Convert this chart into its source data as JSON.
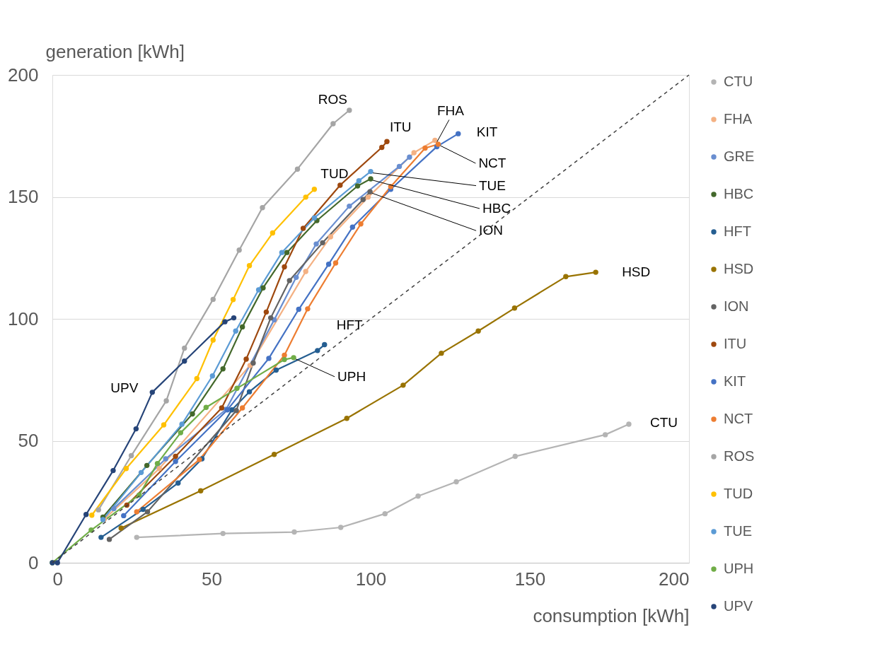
{
  "chart_data": {
    "type": "line",
    "xlabel": "consumption [kWh]",
    "ylabel": "generation [kWh]",
    "xlim": [
      0,
      200
    ],
    "ylim": [
      0,
      200
    ],
    "xticks": [
      0,
      50,
      100,
      150,
      200
    ],
    "yticks": [
      0,
      50,
      100,
      150,
      200
    ],
    "grid": "y",
    "legend": "right",
    "marker": "circle",
    "line_style": "solid",
    "series": [
      {
        "name": "CTU",
        "color": "#b4b4b4",
        "x": [
          26.5,
          53.6,
          76,
          90.6,
          104.5,
          114.9,
          126.9,
          145.4,
          173.7,
          181.1
        ],
        "values": [
          10.4,
          12,
          12.6,
          14.5,
          20.1,
          27.3,
          33.2,
          43.6,
          52.5,
          56.8
        ]
      },
      {
        "name": "FHA",
        "color": "#f4b183",
        "x": [
          16.3,
          33.6,
          62.1,
          79.6,
          87.4,
          99.2,
          113.6,
          120.2
        ],
        "values": [
          17.9,
          38.6,
          80.9,
          119.4,
          133.6,
          149.9,
          168.1,
          173.2
        ]
      },
      {
        "name": "GRE",
        "color": "#698ed0",
        "x": [
          19.3,
          35.6,
          54.6,
          69.7,
          76.6,
          82.9,
          93.3,
          109,
          112.2
        ],
        "values": [
          22.2,
          42.6,
          62.9,
          99.6,
          117,
          130.7,
          146.2,
          162.5,
          166.3
        ]
      },
      {
        "name": "HBC",
        "color": "#43682b",
        "x": [
          15.9,
          29.7,
          44,
          53.6,
          59.7,
          66.2,
          73.7,
          83.1,
          95.9,
          100
        ],
        "values": [
          18.7,
          39.9,
          61,
          79.5,
          96.7,
          112.7,
          127.2,
          140.3,
          154.5,
          157.4
        ]
      },
      {
        "name": "HFT",
        "color": "#255e91",
        "x": [
          15.3,
          28.5,
          39.5,
          47,
          56.4,
          61.9,
          70.3,
          83.3,
          85.5
        ],
        "values": [
          10.4,
          21.9,
          32.7,
          42.6,
          62.7,
          70.1,
          79,
          87,
          89.4
        ]
      },
      {
        "name": "HSD",
        "color": "#997300",
        "x": [
          21.6,
          46.6,
          69.7,
          92.5,
          110.2,
          122.2,
          133.8,
          145.2,
          161.3,
          170.7
        ],
        "values": [
          14.2,
          29.5,
          44.4,
          59.2,
          72.8,
          85.9,
          95,
          104.4,
          117.3,
          119.1
        ]
      },
      {
        "name": "ION",
        "color": "#636363",
        "x": [
          17.9,
          29.9,
          57.8,
          63.1,
          68.6,
          74.5,
          84.9,
          97.6,
          99.8
        ],
        "values": [
          9.6,
          20.9,
          62.4,
          81.9,
          100.4,
          115.7,
          131.2,
          148.9,
          152.1
        ]
      },
      {
        "name": "ITU",
        "color": "#9e480e",
        "x": [
          23.4,
          38.7,
          53.2,
          60.9,
          67.2,
          72.9,
          78.8,
          90.4,
          103.5,
          105.1
        ],
        "values": [
          23.6,
          43.6,
          63.5,
          83.5,
          102.8,
          121.3,
          137.1,
          154.8,
          170.3,
          172.7
        ]
      },
      {
        "name": "KIT",
        "color": "#4472c4",
        "x": [
          22.4,
          38.7,
          55,
          68,
          77.4,
          86.8,
          94.3,
          106.3,
          120.8,
          127.5
        ],
        "values": [
          19.3,
          41.5,
          62.7,
          83.8,
          103.9,
          122.4,
          137.6,
          153.1,
          170.6,
          175.9
        ]
      },
      {
        "name": "NCT",
        "color": "#ed7d31",
        "x": [
          26.5,
          46.2,
          59.7,
          72.9,
          80.2,
          89,
          96.9,
          106.3,
          117.1,
          121.2
        ],
        "values": [
          20.9,
          42.3,
          63.5,
          85.1,
          104.1,
          122.9,
          138.9,
          154.2,
          170,
          171.6
        ]
      },
      {
        "name": "ROS",
        "color": "#a5a5a5",
        "x": [
          14.5,
          24.8,
          35.8,
          41.5,
          50.5,
          58.7,
          66,
          77,
          88.2,
          93.3
        ],
        "values": [
          21.7,
          43.9,
          66.4,
          88,
          108,
          128.2,
          145.6,
          161.4,
          180,
          185.5
        ]
      },
      {
        "name": "TUD",
        "color": "#ffc000",
        "x": [
          12.4,
          23.2,
          35,
          45.4,
          50.5,
          56.8,
          61.9,
          69.2,
          79.6,
          82.3
        ],
        "values": [
          19.5,
          38.6,
          56.5,
          75.5,
          91.3,
          107.9,
          121.8,
          135.2,
          149.9,
          153.1
        ]
      },
      {
        "name": "TUE",
        "color": "#5b9bd5",
        "x": [
          15.9,
          27.9,
          40.7,
          50.3,
          57.6,
          64.8,
          72.1,
          82.3,
          96.3,
          100
        ],
        "values": [
          17.7,
          37,
          56.8,
          76.6,
          95,
          111.9,
          127.2,
          141.4,
          156.6,
          160.4
        ]
      },
      {
        "name": "UPH",
        "color": "#70ad47",
        "x": [
          0,
          12.2,
          27.3,
          33,
          40.3,
          48.3,
          58,
          72.9,
          75.8
        ],
        "values": [
          0,
          13.4,
          27.8,
          40.7,
          53.3,
          63.7,
          71.5,
          83.3,
          84.1
        ]
      },
      {
        "name": "UPV",
        "color": "#264478",
        "x": [
          0,
          1.6,
          10.6,
          19.1,
          26.3,
          31.4,
          41.5,
          54.2,
          57
        ],
        "values": [
          0,
          0,
          19.8,
          37.8,
          54.9,
          69.9,
          82.7,
          98.8,
          100.4
        ]
      },
      {
        "color": "#404040",
        "x": [
          0,
          200
        ],
        "values": [
          0,
          200
        ],
        "line_style": "dashed",
        "marker": "none"
      }
    ],
    "annotations": [
      {
        "text": "ROS",
        "x": 93.3,
        "y": 185.5
      },
      {
        "text": "ITU",
        "x": 105.1,
        "y": 172.7
      },
      {
        "text": "TUD",
        "x": 82.3,
        "y": 153.1
      },
      {
        "text": "FHA",
        "x": 120.2,
        "y": 173.2
      },
      {
        "text": "KIT",
        "x": 127.5,
        "y": 175.9
      },
      {
        "text": "NCT",
        "x": 121.2,
        "y": 171.6
      },
      {
        "text": "TUE",
        "x": 100,
        "y": 160.4
      },
      {
        "text": "HBC",
        "x": 100,
        "y": 157.4
      },
      {
        "text": "ION",
        "x": 99.8,
        "y": 152.1
      },
      {
        "text": "HFT",
        "x": 85.5,
        "y": 89.4
      },
      {
        "text": "UPH",
        "x": 75.8,
        "y": 84.1
      },
      {
        "text": "UPV",
        "x": 31.4,
        "y": 69.9
      },
      {
        "text": "HSD",
        "x": 170.7,
        "y": 119.1
      },
      {
        "text": "CTU",
        "x": 181.1,
        "y": 56.8
      }
    ]
  }
}
